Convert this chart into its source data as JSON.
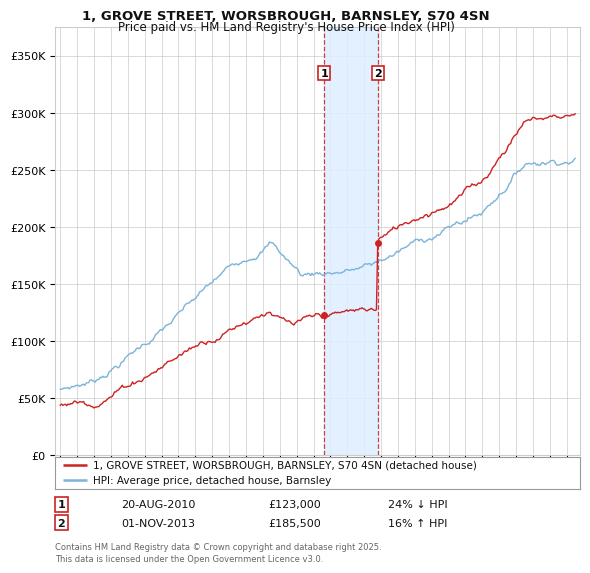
{
  "title_line1": "1, GROVE STREET, WORSBROUGH, BARNSLEY, S70 4SN",
  "title_line2": "Price paid vs. HM Land Registry's House Price Index (HPI)",
  "ylabel_ticks": [
    "£0",
    "£50K",
    "£100K",
    "£150K",
    "£200K",
    "£250K",
    "£300K",
    "£350K"
  ],
  "ylabel_values": [
    0,
    50000,
    100000,
    150000,
    200000,
    250000,
    300000,
    350000
  ],
  "ylim": [
    0,
    375000
  ],
  "xlim_start": 1994.7,
  "xlim_end": 2025.8,
  "hpi_color": "#7ab4d8",
  "price_color": "#cc2222",
  "shading_color": "#ddeeff",
  "transaction1_date": 2010.63,
  "transaction2_date": 2013.83,
  "transaction1_price": 123000,
  "transaction2_price": 185500,
  "transaction1_label": "1",
  "transaction2_label": "2",
  "legend_label1": "1, GROVE STREET, WORSBROUGH, BARNSLEY, S70 4SN (detached house)",
  "legend_label2": "HPI: Average price, detached house, Barnsley",
  "table_row1": [
    "1",
    "20-AUG-2010",
    "£123,000",
    "24% ↓ HPI"
  ],
  "table_row2": [
    "2",
    "01-NOV-2013",
    "£185,500",
    "16% ↑ HPI"
  ],
  "footer": "Contains HM Land Registry data © Crown copyright and database right 2025.\nThis data is licensed under the Open Government Licence v3.0.",
  "background_color": "#ffffff",
  "grid_color": "#cccccc"
}
